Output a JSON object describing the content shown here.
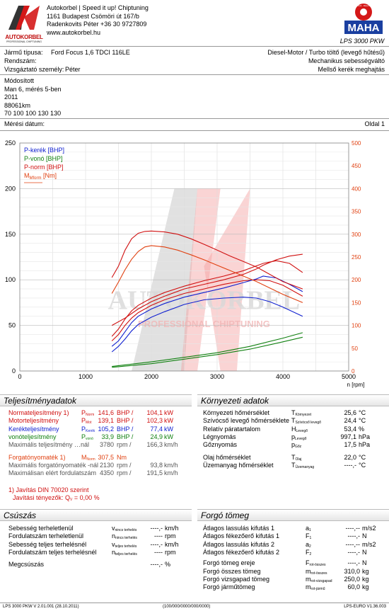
{
  "header": {
    "company_line": "Autokorbel | Speed it up! Chiptuning",
    "address": "1161 Budapest Csömöri út 167/b",
    "contact": "Radenkovits Péter +36 30 9727809",
    "web": "www.autokorbel.hu",
    "logo_text": "AUTOKORBEL",
    "logo_sub": "PROFESSIONAL CHIPTUNING",
    "maha_ring": "Messtechnik · Maschinenbau",
    "maha_text": "MAHA",
    "model": "LPS 3000 PKW"
  },
  "vehicle": {
    "type_label": "Jármű típusa:",
    "type_value": "Ford Focus 1,6 TDCI 116LE",
    "reg_label": "Rendszám:",
    "tester_label": "Vizsgáztató személy:",
    "tester_value": "Péter",
    "engine": "Diesel-Motor / Turbo töltő (levegő hűtésű)",
    "gearbox": "Mechanikus sebességváltó",
    "drive": "Mellső kerék meghajtás"
  },
  "notes": [
    "Módosított",
    "Man 6, mérés 5-ben",
    "2011",
    "88061km",
    "70 100 100 130 130"
  ],
  "meta": {
    "date_label": "Mérési dátum:",
    "page": "Oldal 1"
  },
  "chart_data": {
    "type": "line",
    "xlabel": "n [rpm]",
    "xlim": [
      0,
      5000
    ],
    "x_ticks": [
      "0",
      "1000",
      "2000",
      "3000",
      "4000",
      "5000"
    ],
    "ylim_left": [
      0,
      250
    ],
    "y_ticks_left": [
      "0",
      "50",
      "100",
      "150",
      "200",
      "250"
    ],
    "ylim_right": [
      0,
      500
    ],
    "y_ticks_right": [
      "0",
      "50",
      "100",
      "150",
      "200",
      "250",
      "300",
      "350",
      "400",
      "450",
      "500"
    ],
    "legend": [
      "P-kerék [BHP]",
      "P-vonó [BHP]",
      "P-norm [BHP]",
      "M",
      "Mform",
      "[Nm]"
    ],
    "watermark": "AUTOKORBEL",
    "watermark_sub": "PROFESSIONAL CHIPTUNING",
    "series": [
      {
        "name": "P-norm (tuned)",
        "axis": "left",
        "color": "#d01010",
        "x": [
          1400,
          1500,
          1600,
          1700,
          1800,
          2000,
          2200,
          2500,
          2800,
          3100,
          3400,
          3700,
          3900,
          4100,
          4300
        ],
        "y": [
          38,
          46,
          57,
          66,
          72,
          80,
          86,
          93,
          99,
          104,
          110,
          118,
          121,
          118,
          108
        ]
      },
      {
        "name": "P-norm (stock)",
        "axis": "left",
        "color": "#d01010",
        "x": [
          1400,
          1500,
          1600,
          1700,
          1800,
          2000,
          2200,
          2500,
          2800,
          3100,
          3400,
          3600,
          3800,
          4000,
          4300
        ],
        "y": [
          33,
          40,
          50,
          58,
          64,
          72,
          78,
          85,
          90,
          95,
          99,
          100,
          99,
          94,
          82
        ]
      },
      {
        "name": "P-kerék (tuned)",
        "axis": "left",
        "color": "#1020d0",
        "x": [
          1400,
          1500,
          1600,
          1700,
          1800,
          2000,
          2200,
          2500,
          2800,
          3100,
          3400,
          3600,
          3700,
          3900,
          4100,
          4300
        ],
        "y": [
          27,
          33,
          43,
          53,
          60,
          68,
          74,
          81,
          86,
          91,
          97,
          101,
          104,
          102,
          95,
          87
        ]
      },
      {
        "name": "P-kerék (stock)",
        "axis": "left",
        "color": "#1020d0",
        "x": [
          1400,
          1500,
          1600,
          1700,
          1800,
          2000,
          2200,
          2500,
          2800,
          3100,
          3400,
          3600,
          3800,
          4000,
          4300
        ],
        "y": [
          21,
          27,
          35,
          44,
          51,
          59,
          65,
          73,
          78,
          80,
          81,
          80,
          76,
          70,
          60
        ]
      },
      {
        "name": "P-vonó (tuned)",
        "axis": "left",
        "color": "#108010",
        "x": [
          1400,
          2000,
          2500,
          3000,
          3500,
          4000,
          4300
        ],
        "y": [
          5,
          10,
          15,
          20,
          27,
          36,
          42
        ]
      },
      {
        "name": "P-vonó (stock)",
        "axis": "left",
        "color": "#108010",
        "x": [
          1400,
          2000,
          2500,
          3000,
          3500,
          4000,
          4300
        ],
        "y": [
          4,
          8,
          13,
          18,
          24,
          32,
          37
        ]
      },
      {
        "name": "Mform (tuned)",
        "axis": "right",
        "color": "#d01010",
        "x": [
          1400,
          1500,
          1600,
          1700,
          1800,
          1900,
          2000,
          2200,
          2400,
          2600,
          2800,
          3000,
          3200,
          3400,
          3600,
          3800,
          4000,
          4300
        ],
        "y": [
          205,
          230,
          265,
          290,
          302,
          306,
          307,
          305,
          300,
          290,
          278,
          265,
          252,
          240,
          228,
          212,
          196,
          180
        ]
      },
      {
        "name": "Mform (stock)",
        "axis": "right",
        "color": "#e04010",
        "x": [
          1400,
          1500,
          1600,
          1700,
          1800,
          1900,
          2000,
          2200,
          2400,
          2600,
          2800,
          3000,
          3200,
          3400,
          3600,
          3800,
          4000,
          4300
        ],
        "y": [
          170,
          195,
          222,
          245,
          262,
          272,
          275,
          272,
          265,
          255,
          244,
          232,
          220,
          208,
          196,
          182,
          168,
          150
        ]
      },
      {
        "name": "P-norm (aux)",
        "axis": "left",
        "color": "#d01010",
        "x": [
          1400,
          1600,
          1800,
          2000,
          2200,
          2500,
          2800,
          3100,
          3400,
          3600,
          3700,
          3900,
          4100,
          4300
        ],
        "y": [
          50,
          58,
          68,
          76,
          82,
          90,
          95,
          100,
          106,
          112,
          116,
          122,
          126,
          128
        ]
      }
    ]
  },
  "perf": {
    "title": "Teljesítményadatok",
    "rows": [
      {
        "label": "Normateljesítmény 1)",
        "sym": "P",
        "sub": "Norm",
        "v1": "141,6",
        "u1": "BHP /",
        "v2": "104,1",
        "u2": "kW",
        "cls": "red"
      },
      {
        "label": "Motorteljesítmény",
        "sym": "P",
        "sub": "Mot",
        "v1": "139,1",
        "u1": "BHP /",
        "v2": "102,3",
        "u2": "kW",
        "cls": "red"
      },
      {
        "label": "Kerékteljesítmény",
        "sym": "P",
        "sub": "Kerék",
        "v1": "105,2",
        "u1": "BHP /",
        "v2": "77,4",
        "u2": "kW",
        "cls": "blue"
      },
      {
        "label": "vonóteljesítmény",
        "sym": "P",
        "sub": "vonó",
        "v1": "33,9",
        "u1": "BHP /",
        "v2": "24,9",
        "u2": "kW",
        "cls": "green"
      },
      {
        "label": "Maximális teljesítmény …nál",
        "sym": "",
        "sub": "",
        "v1": "3780",
        "u1": "rpm /",
        "v2": "166,3",
        "u2": "km/h",
        "cls": "grey"
      },
      {
        "label": "Forgatónyomaték 1)",
        "sym": "M",
        "sub": "Norm",
        "v1": "307,5",
        "u1": "Nm",
        "v2": "",
        "u2": "",
        "cls": "orange"
      },
      {
        "label": "Maximális forgatónyomaték -nál",
        "sym": "",
        "sub": "",
        "v1": "2130",
        "u1": "rpm /",
        "v2": "93,8",
        "u2": "km/h",
        "cls": "grey"
      },
      {
        "label": "Maximálisan elért fordulatszám",
        "sym": "",
        "sub": "",
        "v1": "4350",
        "u1": "rpm /",
        "v2": "191,5",
        "u2": "km/h",
        "cls": "grey"
      }
    ],
    "din": "1) Javítás DIN 70020 szerint",
    "din_factor": "Javítási tényezők: Q",
    "din_factor_value": "=    0,00 %"
  },
  "env": {
    "title": "Környezeti adatok",
    "rows": [
      {
        "label": "Környezeti hőmérséklet",
        "sym": "T",
        "sub": "Környezet",
        "v": "25,6",
        "u": "°C"
      },
      {
        "label": "Szívócső levegő hőmérséklete",
        "sym": "T",
        "sub": "Szívócső levegő",
        "v": "24,4",
        "u": "°C"
      },
      {
        "label": "Relatív páratartalom",
        "sym": "H",
        "sub": "Levegő",
        "v": "53,4",
        "u": "%"
      },
      {
        "label": "Légnyomás",
        "sym": "p",
        "sub": "Levegő",
        "v": "997,1",
        "u": "hPa"
      },
      {
        "label": "Gőznyomás",
        "sym": "p",
        "sub": "Gőz",
        "v": "17,5",
        "u": "hPa"
      },
      {
        "label": "Olaj hőmérséklet",
        "sym": "T",
        "sub": "Olaj",
        "v": "22,0",
        "u": "°C"
      },
      {
        "label": "Üzemanyag hőmérséklet",
        "sym": "T",
        "sub": "Üzemanyag",
        "v": "----,-",
        "u": "°C"
      }
    ]
  },
  "loss": {
    "title": "Csúszás",
    "rows": [
      {
        "label": "Sebesség terheletlenül",
        "sym": "v",
        "sub": "nincs terhelés",
        "v": "----,-",
        "u": "km/h"
      },
      {
        "label": "Fordulatszám terheletlenül",
        "sym": "n",
        "sub": "nincs terhelés",
        "v": "----",
        "u": "rpm"
      },
      {
        "label": "Sebesség teljes terhelésnél",
        "sym": "v",
        "sub": "teljes terhelés",
        "v": "----,-",
        "u": "km/h"
      },
      {
        "label": "Fordulatszám teljes terhelésnél",
        "sym": "n",
        "sub": "teljes terhelés",
        "v": "----",
        "u": "rpm"
      },
      {
        "label": "Megcsúszás",
        "sym": "",
        "sub": "",
        "v": "----,-",
        "u": "%"
      }
    ]
  },
  "mass": {
    "title": "Forgó tömeg",
    "rows": [
      {
        "label": "Átlagos lassulás kifutás 1",
        "sym": "a",
        "sub": "1",
        "v": "----,--",
        "u": "m/s2"
      },
      {
        "label": "Átlagos fékezőerő kifutás 1",
        "sym": "F",
        "sub": "1",
        "v": "----,-",
        "u": "N"
      },
      {
        "label": "Átlagos lassulás kifutás 2",
        "sym": "a",
        "sub": "2",
        "v": "----,--",
        "u": "m/s2"
      },
      {
        "label": "Átlagos fékezőerő kifutás 2",
        "sym": "F",
        "sub": "2",
        "v": "----,-",
        "u": "N"
      },
      {
        "label": "Forgó tömeg ereje",
        "sym": "F",
        "sub": "rot-összes",
        "v": "----,-",
        "u": "N"
      },
      {
        "label": "Forgó összes tömeg",
        "sym": "m",
        "sub": "rot-összes",
        "v": "310,0",
        "u": "kg"
      },
      {
        "label": "Forgó vizsgapad tömeg",
        "sym": "m",
        "sub": "rot-vizsgapad",
        "v": "250,0",
        "u": "kg"
      },
      {
        "label": "Forgó járműtömeg",
        "sym": "m",
        "sub": "rot-jármű",
        "v": "60,0",
        "u": "kg"
      }
    ]
  },
  "footer": {
    "left": "LPS 3000 PKW V 2.01.001 (28.10.2011)",
    "mid": "(100/000/0000/000/0000)",
    "right": "LPS-EURO V1.36.003"
  }
}
